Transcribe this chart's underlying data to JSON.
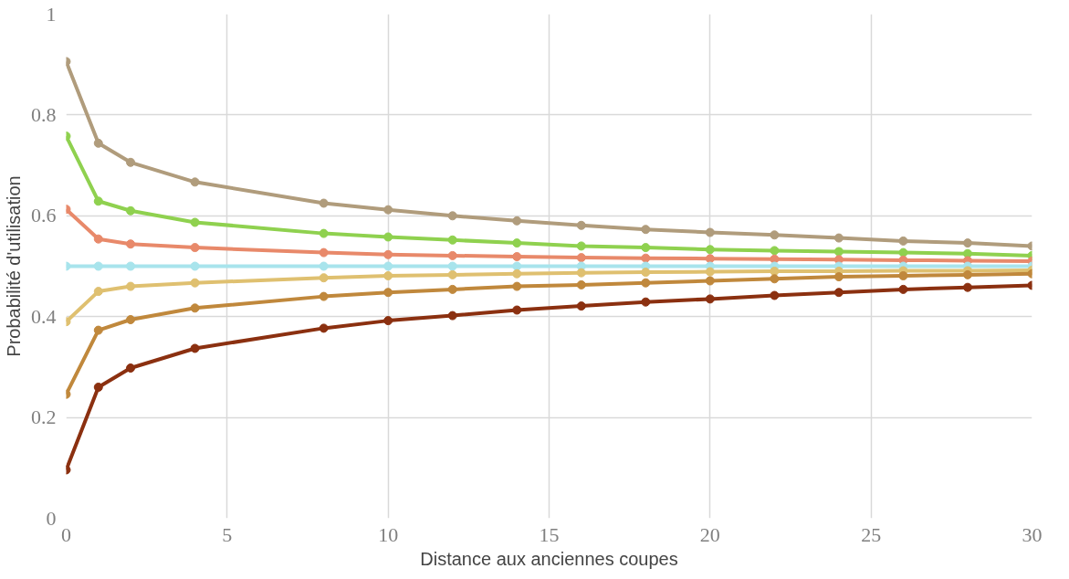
{
  "chart_data": {
    "type": "line",
    "xlabel": "Distance aux anciennes coupes",
    "ylabel": "Probabilité d'utilisation",
    "x": [
      0,
      1,
      2,
      4,
      8,
      10,
      12,
      14,
      16,
      18,
      20,
      22,
      24,
      26,
      28,
      30
    ],
    "xlim": [
      0,
      30
    ],
    "xticks": [
      0,
      5,
      10,
      15,
      20,
      25,
      30
    ],
    "ylim": [
      0,
      1
    ],
    "yticks": [
      0,
      0.2,
      0.4,
      0.6,
      0.8,
      1
    ],
    "grid": true,
    "marker": "circle",
    "line_style": "solid",
    "series": [
      {
        "color": "#b09c7c",
        "values": [
          0.906,
          0.744,
          0.706,
          0.667,
          0.625,
          0.612,
          0.6,
          0.59,
          0.581,
          0.573,
          0.567,
          0.562,
          0.556,
          0.55,
          0.546,
          0.54
        ]
      },
      {
        "color": "#8fd14f",
        "values": [
          0.758,
          0.629,
          0.61,
          0.587,
          0.565,
          0.558,
          0.552,
          0.546,
          0.54,
          0.537,
          0.533,
          0.531,
          0.529,
          0.527,
          0.525,
          0.521
        ]
      },
      {
        "color": "#e8896a",
        "values": [
          0.613,
          0.554,
          0.544,
          0.537,
          0.527,
          0.523,
          0.521,
          0.519,
          0.517,
          0.516,
          0.515,
          0.514,
          0.513,
          0.512,
          0.511,
          0.51
        ]
      },
      {
        "color": "#a8e4ec",
        "values": [
          0.5,
          0.5,
          0.5,
          0.5,
          0.5,
          0.5,
          0.5,
          0.5,
          0.5,
          0.5,
          0.5,
          0.5,
          0.5,
          0.5,
          0.5,
          0.5
        ]
      },
      {
        "color": "#dfc070",
        "values": [
          0.39,
          0.45,
          0.46,
          0.467,
          0.477,
          0.481,
          0.483,
          0.485,
          0.487,
          0.488,
          0.489,
          0.49,
          0.49,
          0.491,
          0.491,
          0.492
        ]
      },
      {
        "color": "#c0883c",
        "values": [
          0.246,
          0.373,
          0.394,
          0.417,
          0.44,
          0.448,
          0.454,
          0.46,
          0.463,
          0.467,
          0.471,
          0.475,
          0.479,
          0.481,
          0.483,
          0.485
        ]
      },
      {
        "color": "#8b3010",
        "values": [
          0.096,
          0.26,
          0.298,
          0.337,
          0.377,
          0.392,
          0.402,
          0.413,
          0.421,
          0.429,
          0.435,
          0.442,
          0.448,
          0.454,
          0.458,
          0.462
        ]
      }
    ]
  }
}
